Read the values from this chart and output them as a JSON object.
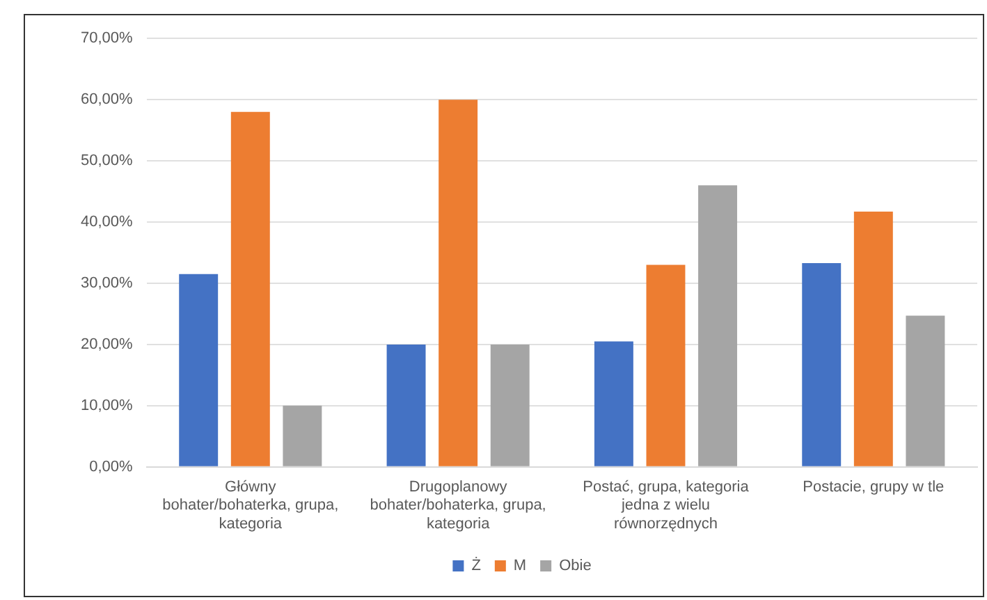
{
  "chart_data": {
    "type": "bar",
    "categories": [
      "Główny bohater/bohaterka, grupa, kategoria",
      "Drugoplanowy bohater/bohaterka, grupa, kategoria",
      "Postać, grupa, kategoria jedna z wielu równorzędnych",
      "Postacie, grupy w tle"
    ],
    "series": [
      {
        "name": "Ż",
        "color": "#4472c4",
        "values": [
          31.5,
          20,
          20.5,
          33.3
        ]
      },
      {
        "name": "M",
        "color": "#ed7d31",
        "values": [
          58,
          60,
          33,
          41.7
        ]
      },
      {
        "name": "Obie",
        "color": "#a5a5a5",
        "values": [
          10,
          20,
          46,
          24.7
        ]
      }
    ],
    "ylim": [
      0,
      70
    ],
    "yticks": [
      {
        "value": 0,
        "label": "0,00%"
      },
      {
        "value": 10,
        "label": "10,00%"
      },
      {
        "value": 20,
        "label": "20,00%"
      },
      {
        "value": 30,
        "label": "30,00%"
      },
      {
        "value": 40,
        "label": "40,00%"
      },
      {
        "value": 50,
        "label": "50,00%"
      },
      {
        "value": 60,
        "label": "60,00%"
      },
      {
        "value": 70,
        "label": "70,00%"
      }
    ],
    "grid": "y",
    "legend": "bottom"
  }
}
